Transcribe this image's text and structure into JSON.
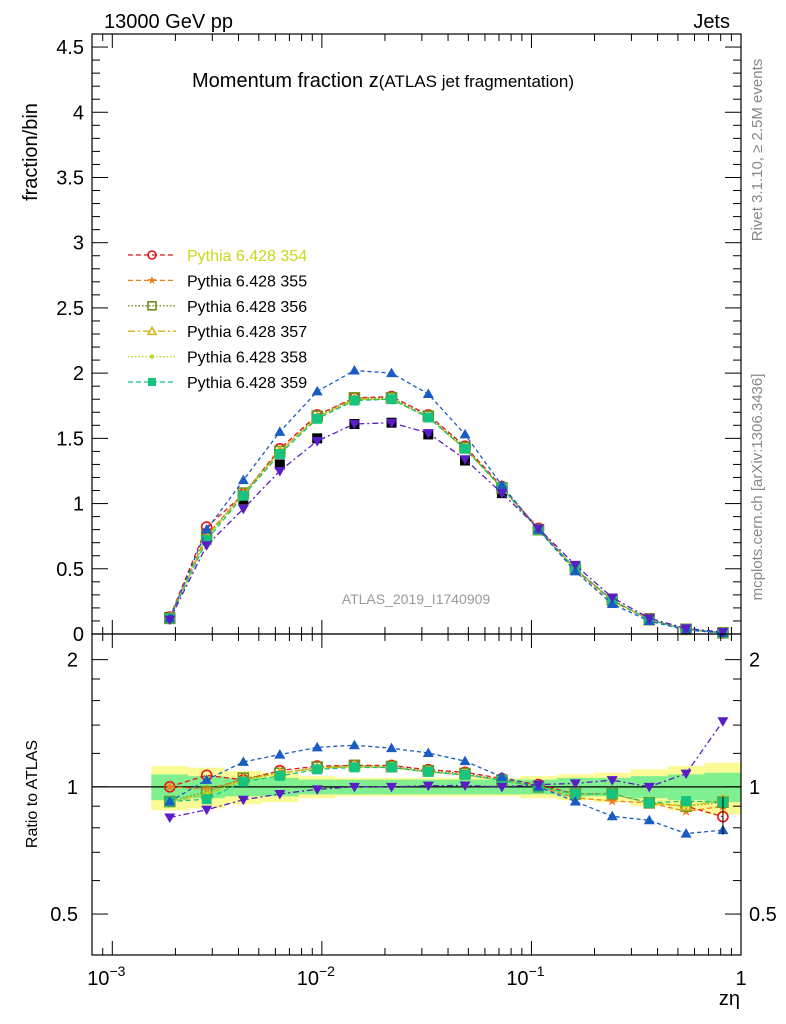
{
  "header": {
    "energy_label": "13000 GeV pp",
    "process_label": "Jets",
    "side_rivet": "Rivet 3.1.10, ≥ 2.5M events",
    "side_mcplots": "mcplots.cern.ch [arXiv:1306.3436]",
    "analysis_id": "ATLAS_2019_I1740909"
  },
  "colors": {
    "data_black": "#000000",
    "band_yellow": "#fbfb95",
    "band_green": "#7fef8f",
    "s354": "#e8141c",
    "s355": "#f07f1c",
    "s356": "#6f8f1c",
    "s357": "#d4b414",
    "s358": "#b4dc14",
    "s359": "#14c47f",
    "blue": "#1a5cc4",
    "purple": "#5a1cc4",
    "legend_highlight": "#c8d814"
  },
  "chart_data": {
    "type": "line",
    "title": "Momentum fraction z",
    "title_suffix": "(ATLAS jet fragmentation)",
    "xlabel": "zη",
    "ylabel_main": "fraction/bin",
    "ylabel_ratio": "Ratio to ATLAS",
    "xscale": "log",
    "xlim": [
      0.0008,
      1.0
    ],
    "ylim_main": [
      0,
      4.6
    ],
    "ylim_ratio": [
      0.4,
      2.3
    ],
    "x_tick_labels": [
      "10",
      "10",
      "10",
      "1"
    ],
    "x_tick_exponents": [
      "−3",
      "−2",
      "−1",
      ""
    ],
    "y_tick_labels_main": [
      "0",
      "0.5",
      "1",
      "1.5",
      "2",
      "2.5",
      "3",
      "3.5",
      "4",
      "4.5"
    ],
    "y_tick_values_main": [
      0,
      0.5,
      1,
      1.5,
      2,
      2.5,
      3,
      3.5,
      4,
      4.5
    ],
    "y_tick_labels_ratio": [
      "0.5",
      "1",
      "2"
    ],
    "y_tick_values_ratio": [
      0.5,
      1,
      2
    ],
    "x": [
      0.00188,
      0.00282,
      0.00422,
      0.0063,
      0.0095,
      0.0143,
      0.0215,
      0.0322,
      0.0482,
      0.0723,
      0.108,
      0.162,
      0.243,
      0.365,
      0.547,
      0.82
    ],
    "data": [
      0.13,
      0.77,
      1.03,
      1.3,
      1.5,
      1.61,
      1.62,
      1.53,
      1.33,
      1.08,
      0.8,
      0.52,
      0.27,
      0.12,
      0.04,
      0.01
    ],
    "band_inner": [
      0.07,
      0.06,
      0.05,
      0.05,
      0.04,
      0.04,
      0.04,
      0.04,
      0.04,
      0.04,
      0.04,
      0.05,
      0.05,
      0.06,
      0.07,
      0.08
    ],
    "band_outer": [
      0.12,
      0.11,
      0.09,
      0.08,
      0.06,
      0.05,
      0.05,
      0.05,
      0.05,
      0.05,
      0.06,
      0.07,
      0.08,
      0.1,
      0.12,
      0.14
    ],
    "series": [
      {
        "name": "Pythia 6.428 354",
        "color_key": "s354",
        "marker": "circle",
        "dash": "5,3",
        "values": [
          0.13,
          0.82,
          1.07,
          1.42,
          1.68,
          1.81,
          1.82,
          1.68,
          1.44,
          1.13,
          0.81,
          0.5,
          0.26,
          0.11,
          0.036,
          0.0085
        ]
      },
      {
        "name": "Pythia 6.428 355",
        "color_key": "s355",
        "marker": "star",
        "dash": "5,3",
        "values": [
          0.13,
          0.76,
          1.07,
          1.4,
          1.66,
          1.8,
          1.8,
          1.66,
          1.42,
          1.12,
          0.8,
          0.49,
          0.25,
          0.11,
          0.035,
          0.009
        ]
      },
      {
        "name": "Pythia 6.428 356",
        "color_key": "s356",
        "marker": "square",
        "dash": "1.5,2",
        "values": [
          0.12,
          0.75,
          1.08,
          1.4,
          1.67,
          1.81,
          1.81,
          1.67,
          1.43,
          1.12,
          0.8,
          0.5,
          0.26,
          0.11,
          0.036,
          0.0092
        ]
      },
      {
        "name": "Pythia 6.428 357",
        "color_key": "s357",
        "marker": "triangle",
        "dash": "7,3,2,3",
        "values": [
          0.12,
          0.74,
          1.07,
          1.4,
          1.66,
          1.8,
          1.8,
          1.66,
          1.42,
          1.12,
          0.8,
          0.5,
          0.26,
          0.11,
          0.036,
          0.0093
        ]
      },
      {
        "name": "Pythia 6.428 358",
        "color_key": "s358",
        "marker": "dot",
        "dash": "1.5,2",
        "values": [
          0.12,
          0.74,
          1.07,
          1.4,
          1.66,
          1.8,
          1.8,
          1.66,
          1.42,
          1.12,
          0.8,
          0.5,
          0.26,
          0.11,
          0.036,
          0.0093
        ]
      },
      {
        "name": "Pythia 6.428 359",
        "color_key": "s359",
        "marker": "square-filled",
        "dash": "5,3",
        "values": [
          0.12,
          0.72,
          1.06,
          1.38,
          1.65,
          1.79,
          1.8,
          1.66,
          1.42,
          1.12,
          0.8,
          0.5,
          0.26,
          0.11,
          0.037,
          0.0092
        ]
      },
      {
        "name": "",
        "color_key": "blue",
        "marker": "triangle-filled",
        "dash": "4,3",
        "legend": false,
        "values": [
          0.12,
          0.8,
          1.18,
          1.55,
          1.86,
          2.02,
          2.0,
          1.84,
          1.53,
          1.14,
          0.8,
          0.48,
          0.23,
          0.1,
          0.031,
          0.0079
        ]
      },
      {
        "name": "",
        "color_key": "purple",
        "marker": "triangle-down-filled",
        "dash": "6,3,2,3",
        "legend": false,
        "values": [
          0.11,
          0.68,
          0.96,
          1.25,
          1.48,
          1.61,
          1.62,
          1.54,
          1.34,
          1.08,
          0.81,
          0.53,
          0.28,
          0.12,
          0.043,
          0.0143
        ]
      }
    ]
  }
}
